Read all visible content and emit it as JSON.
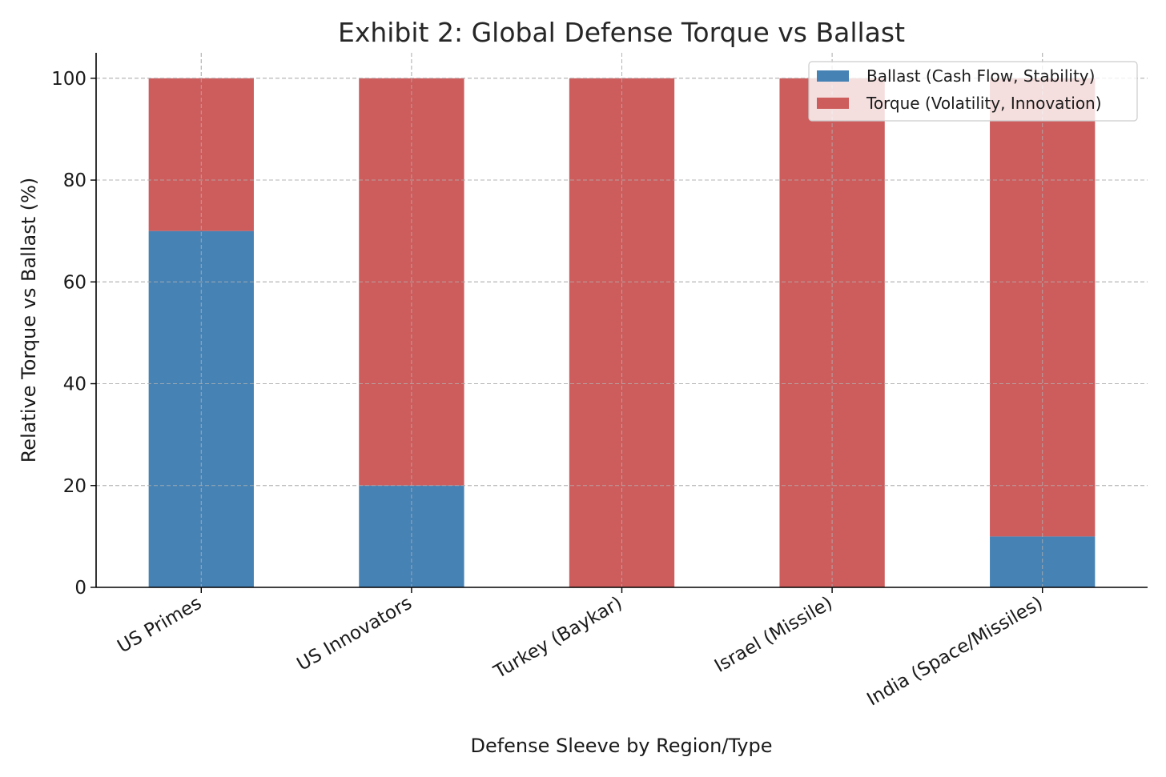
{
  "chart_data": {
    "type": "bar",
    "stacked": true,
    "title": "Exhibit 2: Global Defense Torque vs Ballast",
    "xlabel": "Defense Sleeve by Region/Type",
    "ylabel": "Relative Torque vs Ballast (%)",
    "categories": [
      "US Primes",
      "US Innovators",
      "Turkey (Baykar)",
      "Israel (Missile)",
      "India (Space/Missiles)"
    ],
    "series": [
      {
        "name": "Ballast (Cash Flow, Stability)",
        "color": "#4682b4",
        "values": [
          70,
          20,
          0,
          0,
          10
        ]
      },
      {
        "name": "Torque (Volatility, Innovation)",
        "color": "#cd5c5c",
        "values": [
          30,
          80,
          100,
          100,
          90
        ]
      }
    ],
    "ylim": [
      0,
      105
    ],
    "yticks": [
      0,
      20,
      40,
      60,
      80,
      100
    ],
    "grid": true,
    "legend_position": "top-right"
  }
}
